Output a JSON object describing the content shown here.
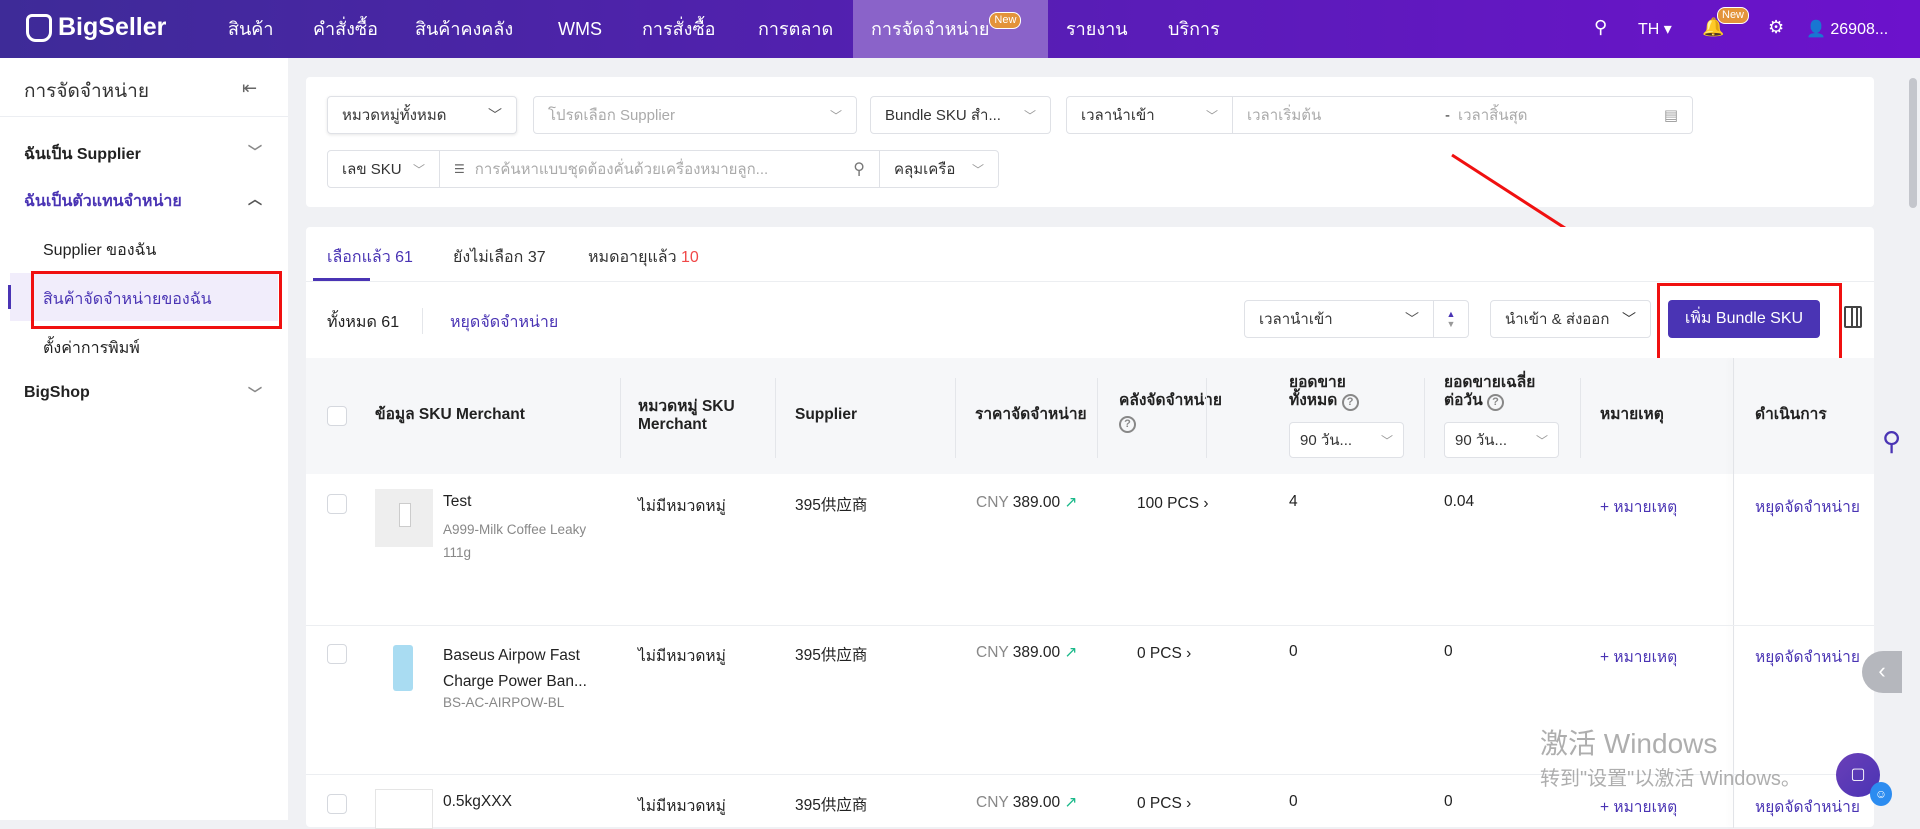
{
  "header": {
    "logo": "BigSeller",
    "nav": [
      "สินค้า",
      "คำสั่งซื้อ",
      "สินค้าคงคลัง",
      "WMS",
      "การสั่งซื้อ",
      "การตลาด",
      "การจัดจำหน่าย",
      "รายงาน",
      "บริการ"
    ],
    "active_nav": "การจัดจำหน่าย",
    "new_badge": "New",
    "language": "TH",
    "notification_badge": "New",
    "user": "26908..."
  },
  "sidebar": {
    "title": "การจัดจำหน่าย",
    "groups": [
      {
        "label": "ฉันเป็น Supplier"
      },
      {
        "label": "ฉันเป็นตัวแทนจำหน่าย",
        "items": [
          "Supplier ของฉัน",
          "สินค้าจัดจำหน่ายของฉัน",
          "ตั้งค่าการพิมพ์"
        ]
      },
      {
        "label": "BigShop"
      }
    ],
    "selected": "สินค้าจัดจำหน่ายของฉัน"
  },
  "filters": {
    "category": "หมวดหมู่ทั้งหมด",
    "supplier_placeholder": "โปรดเลือก Supplier",
    "bundle": "Bundle SKU สำ...",
    "time_type": "เวลานำเข้า",
    "start_placeholder": "เวลาเริ่มต้น",
    "end_placeholder": "เวลาสิ้นสุด",
    "range_sep": "-",
    "search_type": "เลข SKU",
    "search_placeholder": "การค้นหาแบบชุดต้องคั่นด้วยเครื่องหมายลูก...",
    "collapse": "คลุมเครือ"
  },
  "tabs": [
    {
      "label": "เลือกแล้ว",
      "count": "61"
    },
    {
      "label": "ยังไม่เลือก",
      "count": "37"
    },
    {
      "label": "หมดอายุแล้ว",
      "count": "10"
    }
  ],
  "toolbar": {
    "total_label": "ทั้งหมด 61",
    "stop_label": "หยุดจัดจำหน่าย",
    "sort": "เวลานำเข้า",
    "import_export": "นำเข้า & ส่งออก",
    "add_button": "เพิ่ม Bundle SKU"
  },
  "table": {
    "headers": [
      "ข้อมูล SKU Merchant",
      "หมวดหมู่ SKU Merchant",
      "Supplier",
      "ราคาจัดจำหน่าย",
      "คลังจัดจำหน่าย",
      "ยอดขายทั้งหมด",
      "ยอดขายเฉลี่ยต่อวัน",
      "หมายเหตุ",
      "ดำเนินการ"
    ],
    "period_select": "90 วัน...",
    "rows": [
      {
        "name": "Test",
        "sku": "A999-Milk Coffee Leaky",
        "sku2": "111g",
        "category": "ไม่มีหมวดหมู่",
        "supplier": "395供应商",
        "currency": "CNY",
        "price": "389.00",
        "stock": "100 PCS",
        "total_sales": "4",
        "avg_sales": "0.04",
        "note": "+ หมายเหตุ",
        "action": "หยุดจัดจำหน่าย"
      },
      {
        "name": "Baseus Airpow Fast",
        "name2": "Charge Power Ban...",
        "sku": "BS-AC-AIRPOW-BL",
        "category": "ไม่มีหมวดหมู่",
        "supplier": "395供应商",
        "currency": "CNY",
        "price": "389.00",
        "stock": "0 PCS",
        "total_sales": "0",
        "avg_sales": "0",
        "note": "+ หมายเหตุ",
        "action": "หยุดจัดจำหน่าย"
      },
      {
        "name": "0.5kgXXX",
        "category": "ไม่มีหมวดหมู่",
        "supplier": "395供应商",
        "currency": "CNY",
        "price": "389.00",
        "stock": "0 PCS",
        "total_sales": "0",
        "avg_sales": "0",
        "note": "+ หมายเหตุ",
        "action": "หยุดจัดจำหน่าย"
      }
    ]
  },
  "watermark": {
    "line1": "激活 Windows",
    "line2": "转到\"设置\"以激活 Windows。"
  },
  "colors": {
    "primary": "#4a34b4",
    "header_start": "#3e2b98",
    "header_end": "#6c12cc",
    "annotation": "#f01010",
    "expired_count": "#f04848",
    "trend": "#1bb98a"
  }
}
